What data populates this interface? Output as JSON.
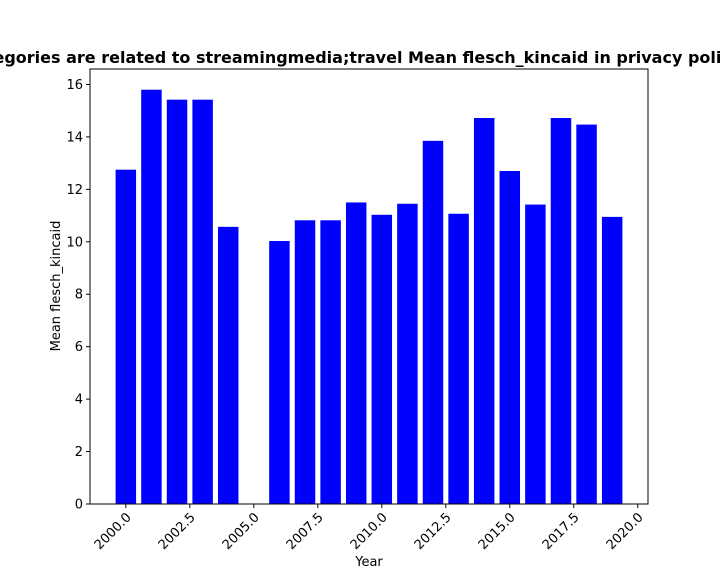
{
  "chart_data": {
    "type": "bar",
    "title": "Categories are related to streamingmedia;travel Mean flesch_kincaid in privacy policies",
    "xlabel": "Year",
    "ylabel": "Mean flesch_kincaid",
    "x": [
      2000,
      2001,
      2002,
      2003,
      2004,
      2006,
      2007,
      2008,
      2009,
      2010,
      2011,
      2012,
      2013,
      2014,
      2015,
      2016,
      2017,
      2018,
      2019
    ],
    "values": [
      12.75,
      15.8,
      15.42,
      15.42,
      10.57,
      10.03,
      10.82,
      10.82,
      11.5,
      11.03,
      11.45,
      13.85,
      11.07,
      14.72,
      12.7,
      11.42,
      14.72,
      14.47,
      10.95
    ],
    "xlim": [
      1998.6,
      2020.4
    ],
    "ylim": [
      0,
      16.59
    ],
    "xticks": [
      2000.0,
      2002.5,
      2005.0,
      2007.5,
      2010.0,
      2012.5,
      2015.0,
      2017.5,
      2020.0
    ],
    "xtick_labels": [
      "2000.0",
      "2002.5",
      "2005.0",
      "2007.5",
      "2010.0",
      "2012.5",
      "2015.0",
      "2017.5",
      "2020.0"
    ],
    "yticks": [
      0,
      2,
      4,
      6,
      8,
      10,
      12,
      14,
      16
    ],
    "ytick_labels": [
      "0",
      "2",
      "4",
      "6",
      "8",
      "10",
      "12",
      "14",
      "16"
    ],
    "bar_width": 0.8,
    "bar_color": "#0000ff",
    "grid": false,
    "xtick_rotation_deg": 45
  }
}
